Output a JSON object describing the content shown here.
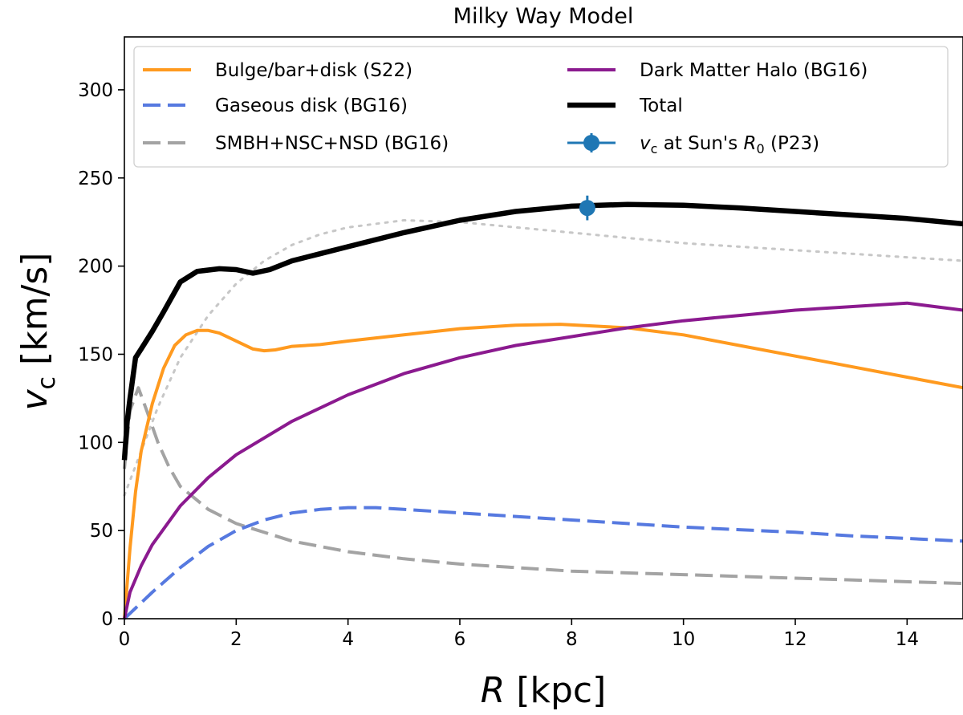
{
  "chart_data": {
    "type": "line",
    "title": "Milky Way Model",
    "xlabel": {
      "symbol": "R",
      "unit": "[kpc]"
    },
    "ylabel": {
      "symbol": "v",
      "subscript": "c",
      "unit": "[km/s]"
    },
    "xlim": [
      0,
      15
    ],
    "ylim": [
      0,
      330
    ],
    "xticks": [
      0,
      2,
      4,
      6,
      8,
      10,
      12,
      14
    ],
    "yticks": [
      0,
      50,
      100,
      150,
      200,
      250,
      300
    ],
    "grid": false,
    "legend_position": "top",
    "series": [
      {
        "name": "Bulge/bar+disk (S22)",
        "style": "solid",
        "color": "#ff9a1f",
        "x": [
          0,
          0.1,
          0.2,
          0.3,
          0.5,
          0.7,
          0.9,
          1.1,
          1.3,
          1.5,
          1.7,
          1.9,
          2.1,
          2.3,
          2.5,
          2.7,
          3.0,
          3.5,
          4,
          5,
          6,
          7,
          7.8,
          9,
          10,
          11,
          12,
          13,
          14,
          15
        ],
        "values": [
          0,
          40,
          72,
          95,
          122,
          142,
          155,
          161,
          163.5,
          163.5,
          162,
          159,
          156,
          153,
          152,
          152.5,
          154.5,
          155.5,
          157.5,
          161,
          164.5,
          166.5,
          167,
          165,
          161,
          155,
          149,
          143,
          137,
          131
        ]
      },
      {
        "name": "Gaseous disk (BG16)",
        "style": "dashed",
        "color": "#5679e0",
        "x": [
          0,
          0.5,
          1,
          1.5,
          2,
          2.5,
          3,
          3.5,
          4,
          4.5,
          5,
          6,
          7,
          8,
          9,
          10,
          11,
          12,
          13,
          14,
          15
        ],
        "values": [
          0,
          15,
          29,
          41,
          50,
          56,
          60,
          62,
          63,
          63,
          62,
          60,
          58,
          56,
          54,
          52,
          50.5,
          49,
          47,
          45.5,
          44
        ]
      },
      {
        "name": "SMBH+NSC+NSD (BG16)",
        "style": "dashed",
        "color": "#a3a3a3",
        "x": [
          0,
          0.1,
          0.25,
          0.4,
          0.6,
          0.8,
          1,
          1.5,
          2,
          3,
          4,
          5,
          6,
          8,
          10,
          12,
          15
        ],
        "values": [
          85,
          118,
          131,
          118,
          100,
          86,
          75,
          62,
          54,
          44,
          38,
          34,
          31,
          27,
          25,
          23,
          20
        ]
      },
      {
        "name": "Dark Matter Halo (BG16)",
        "style": "solid",
        "color": "#8b1a8f",
        "x": [
          0,
          0.1,
          0.3,
          0.5,
          1,
          1.5,
          2,
          3,
          4,
          5,
          6,
          7,
          8,
          9,
          10,
          11,
          12,
          13,
          14,
          15
        ],
        "values": [
          0,
          15,
          30,
          42,
          64,
          80,
          93,
          112,
          127,
          139,
          148,
          155,
          160,
          165,
          169,
          172,
          175,
          177,
          179,
          175
        ]
      },
      {
        "name": "Total",
        "style": "solid",
        "color": "#000000",
        "x": [
          0,
          0.05,
          0.1,
          0.2,
          0.3,
          0.5,
          0.7,
          1,
          1.3,
          1.7,
          2,
          2.3,
          2.6,
          3,
          3.5,
          4,
          5,
          6,
          7,
          8,
          9,
          10,
          11,
          12,
          13,
          14,
          15
        ],
        "values": [
          90,
          112,
          125,
          148,
          153,
          163,
          174,
          191,
          197,
          198.5,
          198,
          196,
          198,
          203,
          207,
          211,
          219,
          226,
          231,
          234,
          235,
          234.5,
          233,
          231,
          229,
          227,
          224
        ]
      },
      {
        "name": "",
        "style": "dotted",
        "color": "#c7c7c7",
        "x": [
          0,
          0.3,
          0.6,
          1,
          1.5,
          2,
          2.5,
          3,
          3.5,
          4,
          5,
          6,
          7,
          8,
          9,
          10,
          11,
          12,
          13,
          14,
          15
        ],
        "values": [
          70,
          95,
          120,
          148,
          172,
          190,
          203,
          212,
          218,
          222,
          226,
          225,
          222,
          219,
          216,
          213,
          211,
          209,
          207,
          205,
          203
        ]
      }
    ],
    "markers": [
      {
        "name": "vc at Sun's R0 (P23)",
        "x": 8.28,
        "y": 233,
        "yerr": 7,
        "color": "#1f77b4"
      }
    ],
    "legend": [
      {
        "label": "Bulge/bar+disk (S22)",
        "style": "solid",
        "color": "#ff9a1f",
        "column": 0
      },
      {
        "label": "Gaseous disk (BG16)",
        "style": "dashed",
        "color": "#5679e0",
        "column": 0
      },
      {
        "label": "SMBH+NSC+NSD (BG16)",
        "style": "dashed",
        "color": "#a3a3a3",
        "column": 0
      },
      {
        "label": "Dark Matter Halo (BG16)",
        "style": "solid",
        "color": "#8b1a8f",
        "column": 1
      },
      {
        "label": "Total",
        "style": "solid-thick",
        "color": "#000000",
        "column": 1
      },
      {
        "label": " at Sun's ",
        "prefix_symbol": "v",
        "prefix_sub": "c",
        "suffix_symbol": "R",
        "suffix_sub": "0",
        "suffix_text": " (P23)",
        "style": "marker",
        "color": "#1f77b4",
        "column": 1
      }
    ]
  }
}
